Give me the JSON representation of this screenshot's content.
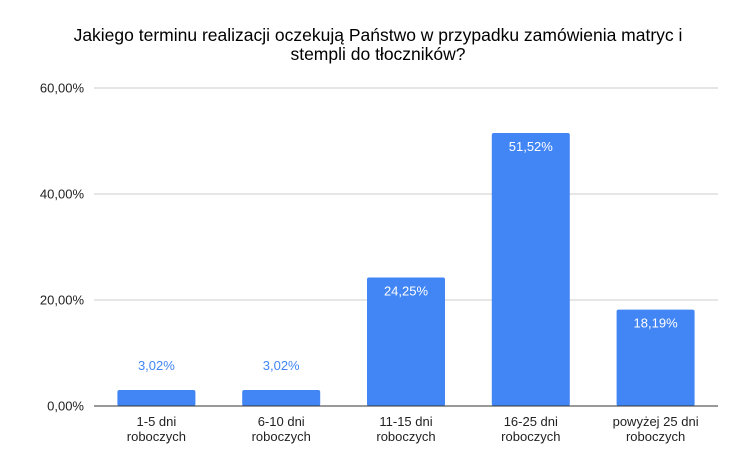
{
  "chart_data": {
    "type": "bar",
    "title_lines": [
      "Jakiego terminu realizacji oczekują Państwo w przypadku zamówienia matryc i",
      "stempli do tłoczników?"
    ],
    "categories": [
      [
        "1-5 dni",
        "roboczych"
      ],
      [
        "6-10 dni",
        "roboczych"
      ],
      [
        "11-15 dni",
        "roboczych"
      ],
      [
        "16-25 dni",
        "roboczych"
      ],
      [
        "powyżej 25 dni",
        "roboczych"
      ]
    ],
    "values": [
      3.02,
      3.02,
      24.25,
      51.52,
      18.19
    ],
    "value_labels": [
      "3,02%",
      "3,02%",
      "24,25%",
      "51,52%",
      "18,19%"
    ],
    "y_ticks": [
      0,
      20,
      40,
      60
    ],
    "y_tick_labels": [
      "0,00%",
      "20,00%",
      "40,00%",
      "60,00%"
    ],
    "ylim": [
      0,
      60
    ],
    "grid": true,
    "legend": "none",
    "colors": {
      "bar": "#4285f4",
      "label_inside": "#ffffff",
      "label_outside": "#4285f4",
      "grid": "#cccccc",
      "axis": "#333333"
    }
  }
}
